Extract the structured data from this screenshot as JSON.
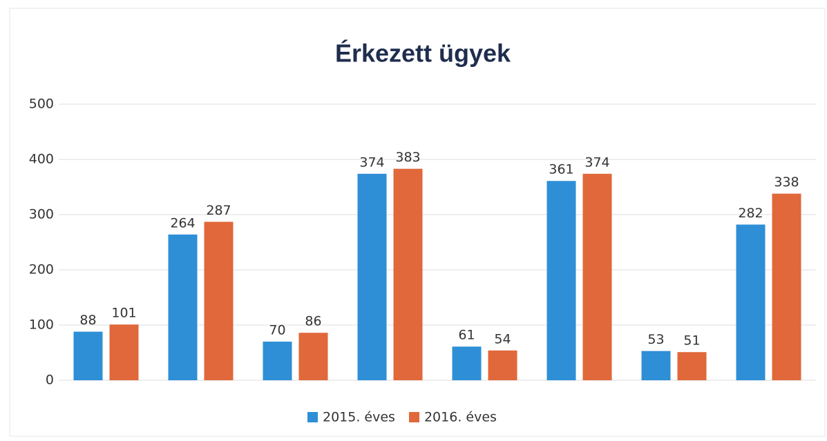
{
  "chart_data": {
    "type": "bar",
    "title": "Érkezett ügyek",
    "categories": [
      null,
      null,
      null,
      null,
      null,
      null,
      null,
      null
    ],
    "series": [
      {
        "name": "2015. éves",
        "color": "#2e8fd6",
        "values": [
          88,
          264,
          70,
          374,
          61,
          361,
          53,
          282
        ]
      },
      {
        "name": "2016. éves",
        "color": "#e0683a",
        "values": [
          101,
          287,
          86,
          383,
          54,
          374,
          51,
          338
        ]
      }
    ],
    "ylim": [
      0,
      500
    ],
    "yticks": [
      0,
      100,
      200,
      300,
      400,
      500
    ],
    "grid": true,
    "legend": "bottom"
  }
}
